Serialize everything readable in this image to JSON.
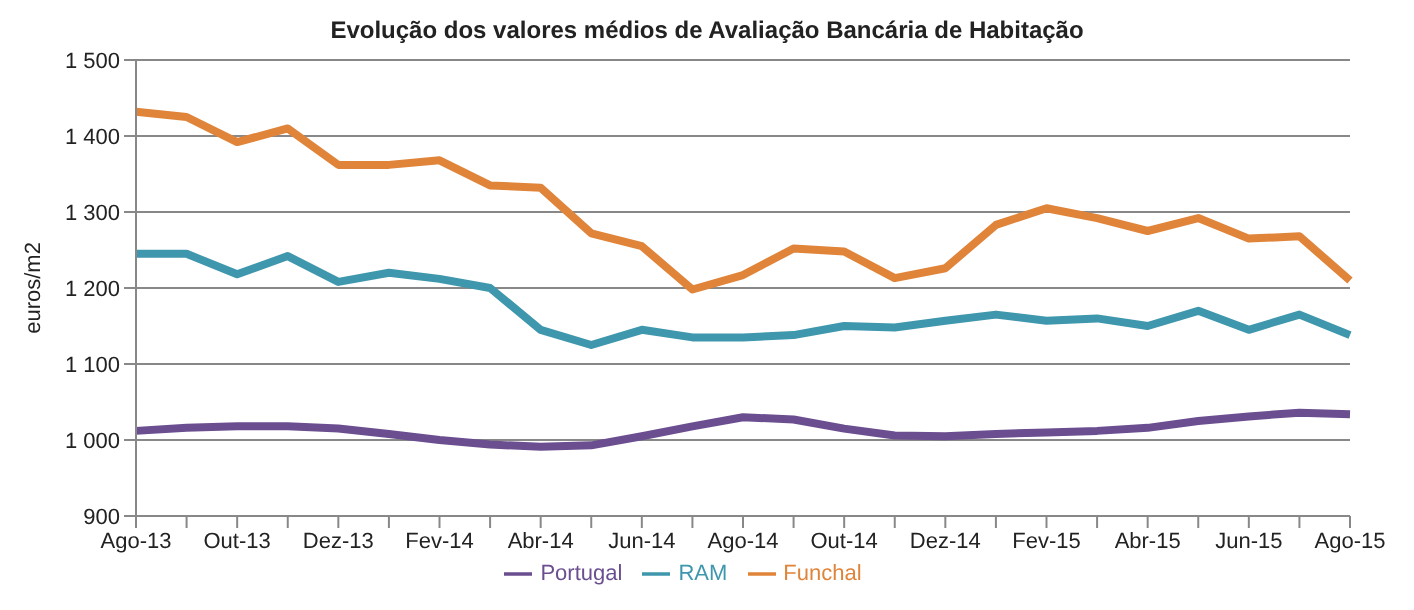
{
  "chart_data": {
    "type": "line",
    "title": "Evolução dos valores médios de Avaliação Bancária de Habitação",
    "ylabel": "euros/m2",
    "categories": [
      "Ago-13",
      null,
      "Out-13",
      null,
      "Dez-13",
      null,
      "Fev-14",
      null,
      "Abr-14",
      null,
      "Jun-14",
      null,
      "Ago-14",
      null,
      "Out-14",
      null,
      "Dez-14",
      null,
      "Fev-15",
      null,
      "Abr-15",
      null,
      "Jun-15",
      null,
      "Ago-15"
    ],
    "series": [
      {
        "name": "Portugal",
        "color": "#6b4e8f",
        "values": [
          1012,
          1016,
          1018,
          1018,
          1015,
          1008,
          1000,
          994,
          991,
          993,
          1005,
          1018,
          1030,
          1027,
          1015,
          1006,
          1005,
          1008,
          1010,
          1012,
          1016,
          1025,
          1031,
          1036,
          1034
        ]
      },
      {
        "name": "RAM",
        "color": "#3f97ad",
        "values": [
          1245,
          1245,
          1218,
          1242,
          1208,
          1220,
          1212,
          1200,
          1145,
          1125,
          1145,
          1135,
          1135,
          1138,
          1150,
          1148,
          1157,
          1165,
          1157,
          1160,
          1150,
          1170,
          1145,
          1165,
          1138
        ]
      },
      {
        "name": "Funchal",
        "color": "#e0843a",
        "values": [
          1432,
          1425,
          1392,
          1410,
          1362,
          1362,
          1368,
          1335,
          1332,
          1272,
          1255,
          1198,
          1217,
          1252,
          1248,
          1213,
          1226,
          1283,
          1305,
          1292,
          1275,
          1292,
          1265,
          1268,
          1210
        ]
      }
    ],
    "ylim": [
      900,
      1500
    ],
    "yticks": [
      {
        "value": 900,
        "label": "900"
      },
      {
        "value": 1000,
        "label": "1 000"
      },
      {
        "value": 1100,
        "label": "1 100"
      },
      {
        "value": 1200,
        "label": "1 200"
      },
      {
        "value": 1300,
        "label": "1 300"
      },
      {
        "value": 1400,
        "label": "1 400"
      },
      {
        "value": 1500,
        "label": "1 500"
      }
    ],
    "grid": "y",
    "legend": "bottom",
    "marker": "none",
    "line_style": "solid"
  }
}
